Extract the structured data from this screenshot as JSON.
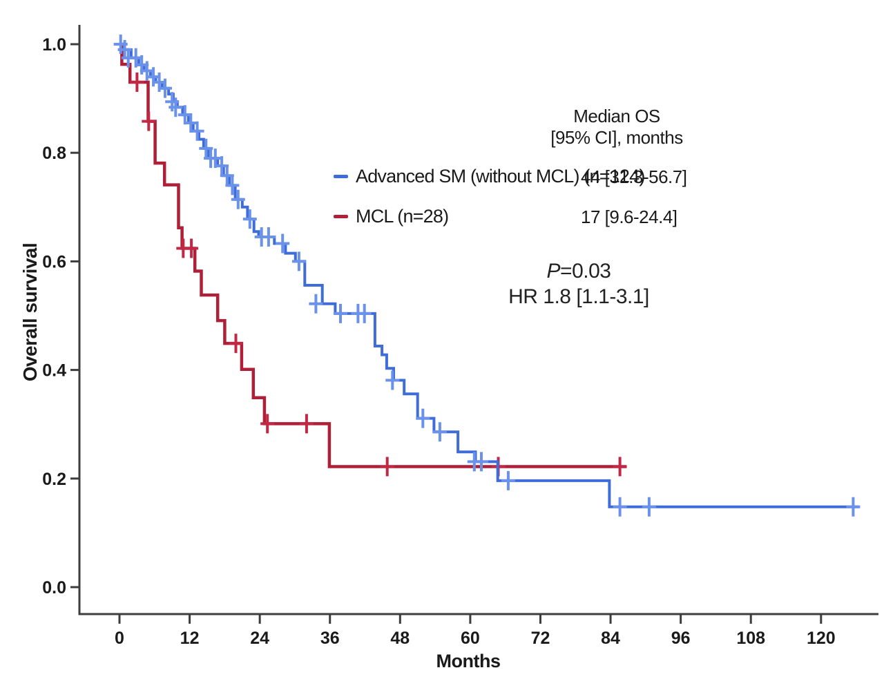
{
  "figure": {
    "y_axis_label": "Overall survival",
    "x_axis_label": "Months",
    "legend_header_line1": "Median OS",
    "legend_header_line2": "[95% CI], months",
    "stats_p_italic": "P",
    "stats_p_rest": "=0.03",
    "stats_hr": "HR 1.8 [1.1-3.1]"
  },
  "chart_data": {
    "type": "line",
    "subtype": "kaplan-meier-step",
    "title": "",
    "xlabel": "Months",
    "ylabel": "Overall survival",
    "x_ticks": [
      0,
      12,
      24,
      36,
      48,
      60,
      72,
      84,
      96,
      108,
      120
    ],
    "y_ticks": [
      {
        "label": "1.0",
        "v": 1.0
      },
      {
        "label": "0.8",
        "v": 0.8
      },
      {
        "label": "0.6",
        "v": 0.6
      },
      {
        "label": "0.4",
        "v": 0.4
      },
      {
        "label": "0.2",
        "v": 0.2
      },
      {
        "label": "0.0",
        "v": 0.0
      }
    ],
    "xlim": [
      -7,
      130
    ],
    "ylim": [
      0,
      1.05
    ],
    "grid": false,
    "legend_position": "upper-right-inside",
    "axis_color": "#3d3d3d",
    "annotations": {
      "p_value": "P=0.03",
      "hazard_ratio": "HR 1.8 [1.1-3.1]"
    },
    "legend_header": [
      "Median OS",
      "[95% CI], months"
    ],
    "series": [
      {
        "name": "Advanced SM (without MCL) (n=124)",
        "median_os": "44 [31.3-56.7]",
        "color": "#3e6cd8",
        "censor_color": "#6b92ea",
        "line_width": 4,
        "end_month": 126.5,
        "steps": [
          [
            0,
            1.0
          ],
          [
            0.8,
            0.99
          ],
          [
            2,
            0.975
          ],
          [
            3.3,
            0.962
          ],
          [
            4.2,
            0.951
          ],
          [
            5.3,
            0.94
          ],
          [
            6.2,
            0.93
          ],
          [
            7.3,
            0.919
          ],
          [
            8.4,
            0.908
          ],
          [
            9.2,
            0.894
          ],
          [
            9.9,
            0.884
          ],
          [
            10.8,
            0.87
          ],
          [
            11.8,
            0.855
          ],
          [
            12.6,
            0.84
          ],
          [
            13.6,
            0.825
          ],
          [
            14.4,
            0.808
          ],
          [
            15.2,
            0.79
          ],
          [
            16.8,
            0.776
          ],
          [
            17.8,
            0.758
          ],
          [
            18.8,
            0.74
          ],
          [
            19.8,
            0.714
          ],
          [
            21,
            0.7
          ],
          [
            21.9,
            0.678
          ],
          [
            23,
            0.655
          ],
          [
            23.8,
            0.645
          ],
          [
            26.5,
            0.633
          ],
          [
            28.4,
            0.615
          ],
          [
            30.1,
            0.6
          ],
          [
            31.7,
            0.556
          ],
          [
            34.7,
            0.522
          ],
          [
            36.9,
            0.504
          ],
          [
            43.7,
            0.444
          ],
          [
            44.9,
            0.428
          ],
          [
            45.7,
            0.403
          ],
          [
            46.9,
            0.381
          ],
          [
            48.7,
            0.356
          ],
          [
            51,
            0.311
          ],
          [
            53.8,
            0.286
          ],
          [
            57.9,
            0.249
          ],
          [
            60.9,
            0.231
          ],
          [
            64.7,
            0.196
          ],
          [
            83.8,
            0.148
          ]
        ],
        "censors": [
          [
            0.2,
            1.0
          ],
          [
            0.9,
            0.99
          ],
          [
            1.5,
            0.975
          ],
          [
            2.8,
            0.975
          ],
          [
            3.8,
            0.962
          ],
          [
            4.7,
            0.951
          ],
          [
            5.8,
            0.94
          ],
          [
            6.8,
            0.93
          ],
          [
            7.8,
            0.919
          ],
          [
            9,
            0.894
          ],
          [
            9.6,
            0.884
          ],
          [
            11.2,
            0.87
          ],
          [
            12.2,
            0.855
          ],
          [
            13.3,
            0.84
          ],
          [
            14.8,
            0.808
          ],
          [
            15.6,
            0.79
          ],
          [
            16.4,
            0.79
          ],
          [
            17.5,
            0.776
          ],
          [
            18.4,
            0.758
          ],
          [
            19.3,
            0.74
          ],
          [
            20.3,
            0.714
          ],
          [
            22.3,
            0.678
          ],
          [
            24.3,
            0.645
          ],
          [
            25.5,
            0.645
          ],
          [
            27.9,
            0.633
          ],
          [
            30.7,
            0.6
          ],
          [
            33.6,
            0.522
          ],
          [
            37.8,
            0.504
          ],
          [
            40.8,
            0.504
          ],
          [
            41.9,
            0.504
          ],
          [
            46.7,
            0.381
          ],
          [
            51.9,
            0.311
          ],
          [
            54.8,
            0.286
          ],
          [
            60.7,
            0.231
          ],
          [
            61.9,
            0.231
          ],
          [
            66.5,
            0.196
          ],
          [
            85.6,
            0.148
          ],
          [
            90.6,
            0.148
          ],
          [
            125.5,
            0.148
          ]
        ]
      },
      {
        "name": "MCL (n=28)",
        "median_os": "17 [9.6-24.4]",
        "color": "#b01f38",
        "censor_color": "#c22844",
        "line_width": 4.5,
        "end_month": 86.7,
        "steps": [
          [
            0,
            1.0
          ],
          [
            0.4,
            0.963
          ],
          [
            1.8,
            0.93
          ],
          [
            4.9,
            0.858
          ],
          [
            6.1,
            0.781
          ],
          [
            7.7,
            0.741
          ],
          [
            10.1,
            0.662
          ],
          [
            10.7,
            0.624
          ],
          [
            12.9,
            0.582
          ],
          [
            14,
            0.538
          ],
          [
            16.8,
            0.491
          ],
          [
            18,
            0.449
          ],
          [
            20.9,
            0.401
          ],
          [
            22.9,
            0.349
          ],
          [
            24.8,
            0.301
          ],
          [
            35.9,
            0.222
          ]
        ],
        "censors": [
          [
            3,
            0.93
          ],
          [
            5,
            0.858
          ],
          [
            10.9,
            0.624
          ],
          [
            12.3,
            0.624
          ],
          [
            19.9,
            0.449
          ],
          [
            25.3,
            0.301
          ],
          [
            32,
            0.301
          ],
          [
            45.8,
            0.222
          ],
          [
            64.8,
            0.222
          ],
          [
            85.6,
            0.222
          ]
        ]
      }
    ]
  }
}
